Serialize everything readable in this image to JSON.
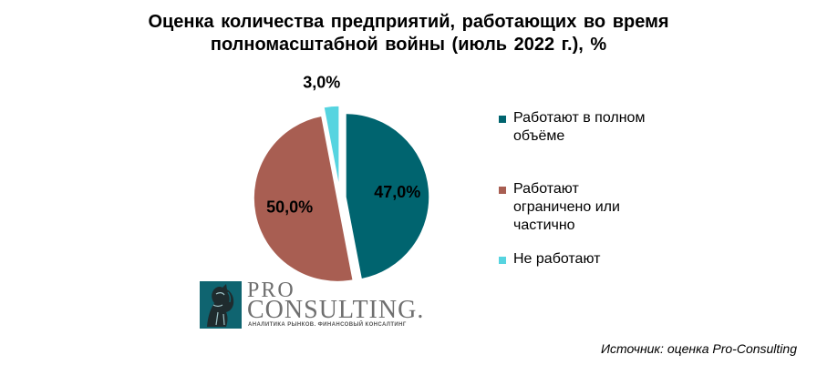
{
  "chart_data": {
    "type": "pie",
    "title_lines": [
      "Оценка количества предприятий, работающих во время",
      "полномасштабной войны (июль 2022 г.), %"
    ],
    "categories": [
      "Работают в полном объёме",
      "Работают ограничено или частично",
      "Не работают"
    ],
    "values": [
      47.0,
      50.0,
      3.0
    ],
    "labels": [
      "47,0%",
      "50,0%",
      "3,0%"
    ],
    "colors": [
      "#00646f",
      "#a85e52",
      "#56d4e0"
    ],
    "legend_position": "right"
  },
  "logo": {
    "pro": "PRO",
    "consulting": "CONSULTING.",
    "tagline": "АНАЛИТИКА РЫНКОВ. ФИНАНСОВЫЙ КОНСАЛТИНГ"
  },
  "source": "Источник: оценка Pro-Consulting"
}
